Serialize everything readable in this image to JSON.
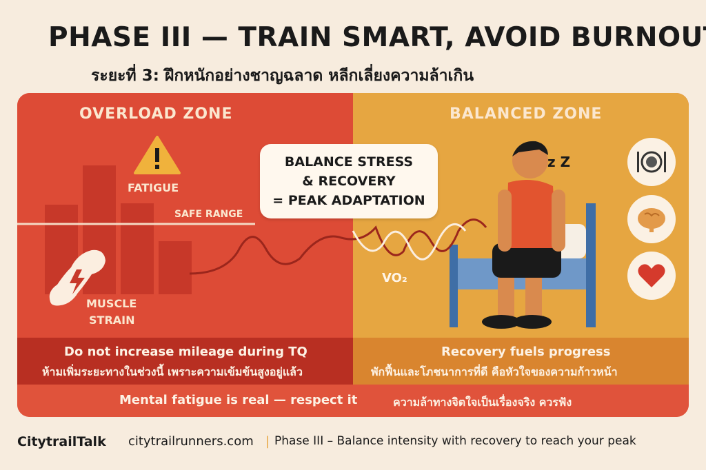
{
  "header": {
    "title": "PHASE III — TRAIN SMART, AVOID BURNOUT",
    "subtitle": "ระยะที่ 3: ฝึกหนักอย่างชาญฉลาด หลีกเลี่ยงความล้าเกิน"
  },
  "overload": {
    "title": "OVERLOAD ZONE",
    "fatigue": "FATIGUE",
    "safe_range": "SAFE RANGE",
    "muscle": "MUSCLE",
    "strain": "STRAIN"
  },
  "balanced": {
    "title": "BALANCED ZONE",
    "vo2": "VO₂",
    "zz": "z Z"
  },
  "callout": {
    "line1": "BALANCE STRESS",
    "line2": "& RECOVERY",
    "line3": "= PEAK ADAPTATION"
  },
  "bottom": {
    "left_en": "Do not increase mileage during TQ",
    "left_th": "ห้ามเพิ่มระยะทางในช่วงนี้ เพราะความเข้มข้นสูงอยู่แล้ว",
    "right_en": "Recovery fuels progress",
    "right_th": "พักฟื้นและโภชนาการที่ดี คือหัวใจของความก้าวหน้า",
    "strip_en": "Mental fatigue is real — respect it",
    "strip_th": "ความล้าทางจิตใจเป็นเรื่องจริง ควรฟัง"
  },
  "footer": {
    "brand": "CitytrailTalk",
    "site": "citytrailrunners.com",
    "sep": "|",
    "tagline": "Phase III – Balance intensity with recovery to reach your peak"
  },
  "icons": [
    "warning-icon",
    "muscle-lightning-icon",
    "plate-cutlery-icon",
    "brain-icon",
    "heart-icon"
  ],
  "colors": {
    "overload": "#dd4b36",
    "balanced": "#e6a641",
    "dark_red": "#b82f22",
    "orange": "#d9852f"
  }
}
